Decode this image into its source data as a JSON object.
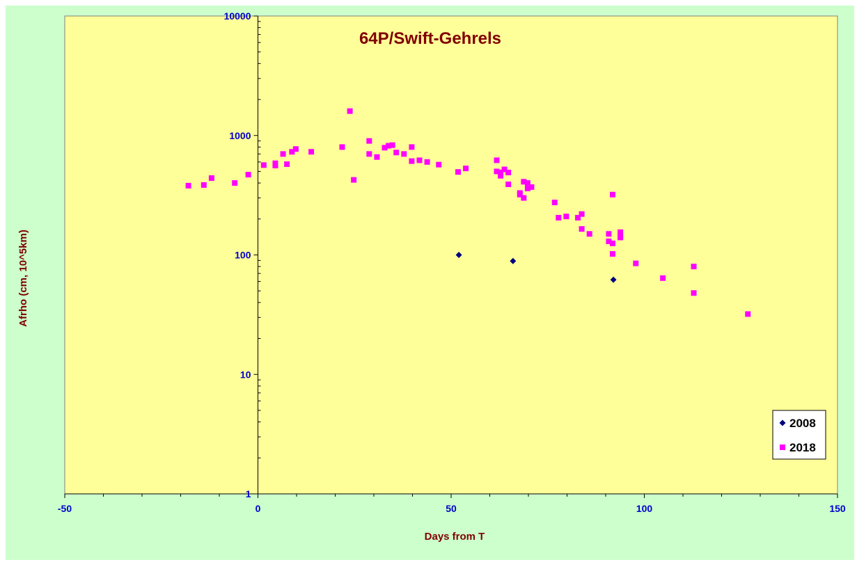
{
  "chart_data": {
    "type": "scatter",
    "title": "64P/Swift-Gehrels",
    "xlabel": "Days from T",
    "ylabel": "Afrho (cm, 10^5km)",
    "xlim": [
      -50,
      150
    ],
    "ylim": [
      1,
      10000
    ],
    "yscale": "log",
    "x_ticks": [
      -50,
      0,
      50,
      100,
      150
    ],
    "y_ticks": [
      1,
      10,
      100,
      1000,
      10000
    ],
    "x_tick_labels": [
      "-50",
      "0",
      "50",
      "100",
      "150"
    ],
    "y_tick_labels": [
      "1",
      "10",
      "100",
      "1000",
      "10000"
    ],
    "grid": false,
    "legend_position": "bottom-right",
    "colors": {
      "page_background": "#ccffcc",
      "plot_background": "#ffff99",
      "title": "#800000",
      "axis_title": "#800000",
      "tick_label": "#0000cc",
      "series_2008": "#000080",
      "series_2018": "#ff00ff"
    },
    "series": [
      {
        "name": "2008",
        "marker": "diamond",
        "points": [
          [
            52,
            100
          ],
          [
            66,
            89
          ],
          [
            92,
            62
          ]
        ]
      },
      {
        "name": "2018",
        "marker": "square",
        "points": [
          [
            -18,
            380
          ],
          [
            -14,
            385
          ],
          [
            -12,
            440
          ],
          [
            -6,
            400
          ],
          [
            -2.5,
            470
          ],
          [
            1.5,
            565
          ],
          [
            4.5,
            560
          ],
          [
            4.5,
            585
          ],
          [
            6.5,
            700
          ],
          [
            7.5,
            575
          ],
          [
            8.8,
            730
          ],
          [
            9.8,
            770
          ],
          [
            13.8,
            730
          ],
          [
            21.8,
            800
          ],
          [
            23.8,
            1600
          ],
          [
            24.8,
            425
          ],
          [
            28.8,
            900
          ],
          [
            28.8,
            700
          ],
          [
            30.8,
            660
          ],
          [
            32.8,
            790
          ],
          [
            33.8,
            820
          ],
          [
            34.8,
            830
          ],
          [
            35.8,
            720
          ],
          [
            37.8,
            700
          ],
          [
            39.8,
            800
          ],
          [
            39.8,
            610
          ],
          [
            41.8,
            620
          ],
          [
            43.8,
            600
          ],
          [
            46.8,
            570
          ],
          [
            51.8,
            495
          ],
          [
            53.8,
            530
          ],
          [
            61.8,
            620
          ],
          [
            61.8,
            500
          ],
          [
            62.8,
            490
          ],
          [
            62.8,
            460
          ],
          [
            63.8,
            520
          ],
          [
            64.8,
            490
          ],
          [
            64.8,
            390
          ],
          [
            67.8,
            330
          ],
          [
            67.8,
            320
          ],
          [
            68.8,
            410
          ],
          [
            68.8,
            300
          ],
          [
            69.8,
            400
          ],
          [
            69.8,
            360
          ],
          [
            70.8,
            370
          ],
          [
            76.8,
            275
          ],
          [
            77.8,
            205
          ],
          [
            79.8,
            210
          ],
          [
            82.8,
            205
          ],
          [
            83.8,
            220
          ],
          [
            83.8,
            165
          ],
          [
            85.8,
            150
          ],
          [
            90.8,
            150
          ],
          [
            90.8,
            130
          ],
          [
            91.8,
            320
          ],
          [
            91.8,
            125
          ],
          [
            91.8,
            102
          ],
          [
            93.8,
            155
          ],
          [
            93.8,
            145
          ],
          [
            93.8,
            140
          ],
          [
            97.8,
            85
          ],
          [
            104.8,
            64
          ],
          [
            112.8,
            80
          ],
          [
            112.8,
            48
          ],
          [
            126.8,
            32
          ]
        ]
      }
    ]
  }
}
